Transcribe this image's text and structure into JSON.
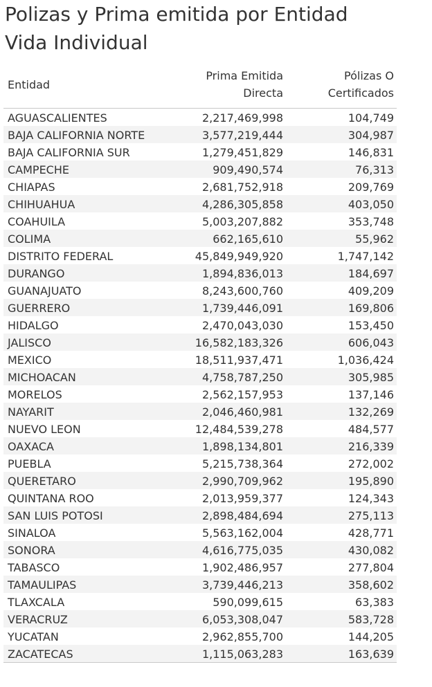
{
  "title": {
    "line1": "Polizas y Prima emitida por Entidad",
    "line2": "Vida Individual"
  },
  "chart_data": {
    "type": "table",
    "columns": [
      "Entidad",
      "Prima Emitida Directa",
      "Pólizas O Certificados"
    ],
    "headers": {
      "entidad": "Entidad",
      "prima_line1": "Prima Emitida",
      "prima_line2": "Directa",
      "polizas_line1": "Pólizas O",
      "polizas_line2": "Certificados"
    },
    "rows": [
      {
        "entidad": "AGUASCALIENTES",
        "prima": "2,217,469,998",
        "polizas": "104,749"
      },
      {
        "entidad": "BAJA CALIFORNIA NORTE",
        "prima": "3,577,219,444",
        "polizas": "304,987"
      },
      {
        "entidad": "BAJA CALIFORNIA SUR",
        "prima": "1,279,451,829",
        "polizas": "146,831"
      },
      {
        "entidad": "CAMPECHE",
        "prima": "909,490,574",
        "polizas": "76,313"
      },
      {
        "entidad": "CHIAPAS",
        "prima": "2,681,752,918",
        "polizas": "209,769"
      },
      {
        "entidad": "CHIHUAHUA",
        "prima": "4,286,305,858",
        "polizas": "403,050"
      },
      {
        "entidad": "COAHUILA",
        "prima": "5,003,207,882",
        "polizas": "353,748"
      },
      {
        "entidad": "COLIMA",
        "prima": "662,165,610",
        "polizas": "55,962"
      },
      {
        "entidad": "DISTRITO FEDERAL",
        "prima": "45,849,949,920",
        "polizas": "1,747,142"
      },
      {
        "entidad": "DURANGO",
        "prima": "1,894,836,013",
        "polizas": "184,697"
      },
      {
        "entidad": "GUANAJUATO",
        "prima": "8,243,600,760",
        "polizas": "409,209"
      },
      {
        "entidad": "GUERRERO",
        "prima": "1,739,446,091",
        "polizas": "169,806"
      },
      {
        "entidad": "HIDALGO",
        "prima": "2,470,043,030",
        "polizas": "153,450"
      },
      {
        "entidad": "JALISCO",
        "prima": "16,582,183,326",
        "polizas": "606,043"
      },
      {
        "entidad": "MEXICO",
        "prima": "18,511,937,471",
        "polizas": "1,036,424"
      },
      {
        "entidad": "MICHOACAN",
        "prima": "4,758,787,250",
        "polizas": "305,985"
      },
      {
        "entidad": "MORELOS",
        "prima": "2,562,157,953",
        "polizas": "137,146"
      },
      {
        "entidad": "NAYARIT",
        "prima": "2,046,460,981",
        "polizas": "132,269"
      },
      {
        "entidad": "NUEVO LEON",
        "prima": "12,484,539,278",
        "polizas": "484,577"
      },
      {
        "entidad": "OAXACA",
        "prima": "1,898,134,801",
        "polizas": "216,339"
      },
      {
        "entidad": "PUEBLA",
        "prima": "5,215,738,364",
        "polizas": "272,002"
      },
      {
        "entidad": "QUERETARO",
        "prima": "2,990,709,962",
        "polizas": "195,890"
      },
      {
        "entidad": "QUINTANA ROO",
        "prima": "2,013,959,377",
        "polizas": "124,343"
      },
      {
        "entidad": "SAN LUIS POTOSI",
        "prima": "2,898,484,694",
        "polizas": "275,113"
      },
      {
        "entidad": "SINALOA",
        "prima": "5,563,162,004",
        "polizas": "428,771"
      },
      {
        "entidad": "SONORA",
        "prima": "4,616,775,035",
        "polizas": "430,082"
      },
      {
        "entidad": "TABASCO",
        "prima": "1,902,486,957",
        "polizas": "277,804"
      },
      {
        "entidad": "TAMAULIPAS",
        "prima": "3,739,446,213",
        "polizas": "358,602"
      },
      {
        "entidad": "TLAXCALA",
        "prima": "590,099,615",
        "polizas": "63,383"
      },
      {
        "entidad": "VERACRUZ",
        "prima": "6,053,308,047",
        "polizas": "583,728"
      },
      {
        "entidad": "YUCATAN",
        "prima": "2,962,855,700",
        "polizas": "144,205"
      },
      {
        "entidad": "ZACATECAS",
        "prima": "1,115,063,283",
        "polizas": "163,639"
      }
    ],
    "colors": {
      "text": "#333333",
      "band": "#f3f3f3",
      "rule": "#c8c8c8"
    }
  }
}
